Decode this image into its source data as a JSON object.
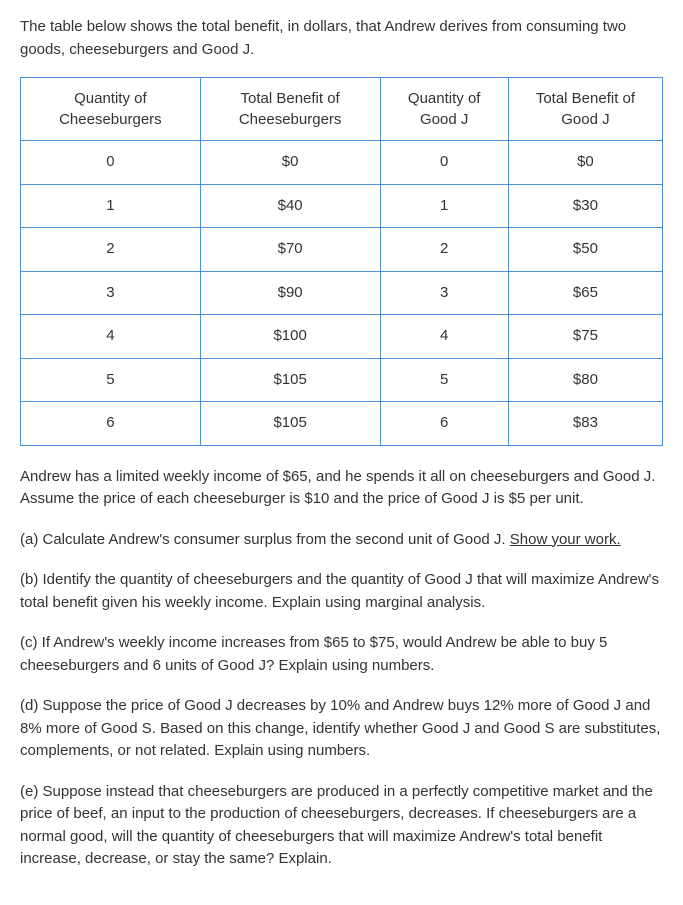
{
  "intro": "The table below shows the total benefit, in dollars, that Andrew derives from consuming two goods, cheeseburgers and Good J.",
  "table": {
    "headers": [
      "Quantity of Cheeseburgers",
      "Total Benefit of Cheeseburgers",
      "Quantity of Good J",
      "Total Benefit of Good J"
    ],
    "rows": [
      [
        "0",
        "$0",
        "0",
        "$0"
      ],
      [
        "1",
        "$40",
        "1",
        "$30"
      ],
      [
        "2",
        "$70",
        "2",
        "$50"
      ],
      [
        "3",
        "$90",
        "3",
        "$65"
      ],
      [
        "4",
        "$100",
        "4",
        "$75"
      ],
      [
        "5",
        "$105",
        "5",
        "$80"
      ],
      [
        "6",
        "$105",
        "6",
        "$83"
      ]
    ],
    "col_widths": [
      "28%",
      "28%",
      "20%",
      "24%"
    ],
    "border_color": "#4a90d9"
  },
  "context": "Andrew has a limited weekly income of $65, and he spends it all on cheeseburgers and Good J. Assume the price of each cheeseburger is $10 and the price of Good J is $5 per unit.",
  "qa": {
    "prefix": "(a) Calculate Andrew's consumer surplus from the second unit of Good J. ",
    "underline": "Show your work."
  },
  "qb": "(b) Identify the quantity of cheeseburgers and the quantity of Good J that will maximize Andrew's total benefit given his weekly income. Explain using marginal analysis.",
  "qc": "(c) If Andrew's weekly income increases from $65 to $75, would Andrew be able to buy 5 cheeseburgers and 6 units of Good J? Explain using numbers.",
  "qd": "(d) Suppose the price of Good J decreases by 10% and Andrew buys 12% more of Good J and 8% more of Good S. Based on this change, identify whether Good J and Good S are substitutes, complements, or not related. Explain using numbers.",
  "qe": "(e) Suppose instead that cheeseburgers are produced in a perfectly competitive market and the price of beef, an input to the production of cheeseburgers, decreases. If cheeseburgers are a normal good, will the quantity of cheeseburgers that will maximize Andrew's total benefit increase, decrease, or stay the same? Explain."
}
